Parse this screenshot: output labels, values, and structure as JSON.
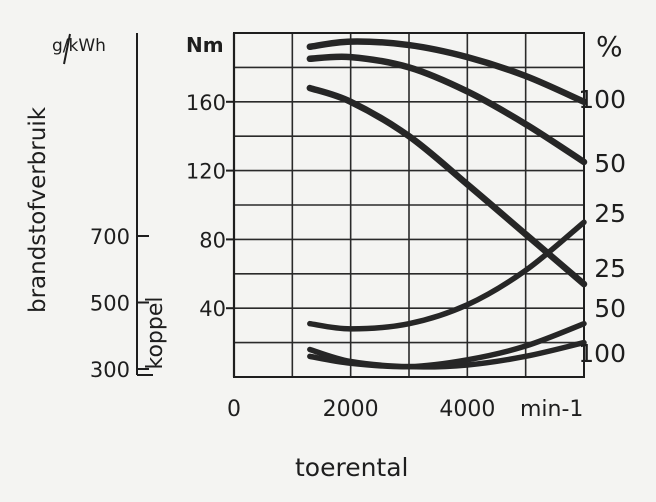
{
  "chart_data": {
    "type": "line",
    "title": "",
    "xlabel": "toerental",
    "x_unit": "min-1",
    "x_tick_labels": [
      "0",
      "2000",
      "4000"
    ],
    "xlim": [
      0,
      6000
    ],
    "grid": true,
    "left_axes": [
      {
        "name": "koppel",
        "unit": "Nm",
        "ylim": [
          0,
          200
        ],
        "ticks": [
          40,
          80,
          120,
          160
        ]
      },
      {
        "name": "brandstofverbruik",
        "unit": "g/kWh",
        "ticks": [
          300,
          500,
          700
        ]
      }
    ],
    "right_axis": {
      "unit": "%",
      "labels_top": [
        "100",
        "50",
        "25"
      ],
      "labels_bottom": [
        "25",
        "50",
        "100"
      ]
    },
    "series": [
      {
        "group": "koppel",
        "load_label": "100",
        "x": [
          1300,
          2000,
          3000,
          4000,
          5000,
          6000
        ],
        "y": [
          192,
          195,
          193,
          186,
          175,
          160
        ]
      },
      {
        "group": "koppel",
        "load_label": "50",
        "x": [
          1300,
          2000,
          3000,
          4000,
          5000,
          6000
        ],
        "y": [
          185,
          186,
          180,
          166,
          147,
          125
        ]
      },
      {
        "group": "koppel",
        "load_label": "25",
        "x": [
          1300,
          2000,
          3000,
          4000,
          5000,
          6000
        ],
        "y": [
          168,
          160,
          140,
          112,
          83,
          54
        ]
      },
      {
        "group": "brandstofverbruik",
        "load_label": "25",
        "x": [
          1300,
          2000,
          3000,
          4000,
          5000,
          6000
        ],
        "y": [
          31,
          28,
          31,
          42,
          62,
          90
        ]
      },
      {
        "group": "brandstofverbruik",
        "load_label": "50",
        "x": [
          1300,
          2000,
          3000,
          4000,
          5000,
          6000
        ],
        "y": [
          12,
          8,
          6,
          10,
          18,
          31
        ]
      },
      {
        "group": "brandstofverbruik",
        "load_label": "100",
        "x": [
          1300,
          2000,
          3000,
          4000,
          5000,
          6000
        ],
        "y": [
          16,
          9,
          6,
          7,
          12,
          20
        ]
      }
    ]
  }
}
